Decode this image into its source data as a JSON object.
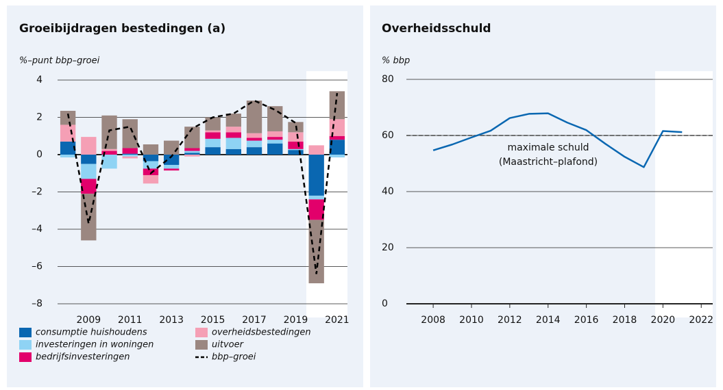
{
  "chart_data": [
    {
      "type": "stacked-bar",
      "title": "Groeibijdragen bestedingen (a)",
      "y_label": "%–punt bbp–groei",
      "categories": [
        null,
        "2009",
        null,
        "2011",
        null,
        "2013",
        null,
        "2015",
        null,
        "2017",
        null,
        "2019",
        null,
        "2021"
      ],
      "ylim": [
        -8,
        4
      ],
      "yticks": [
        {
          "value": -8,
          "label": "–8"
        },
        {
          "value": -6,
          "label": "–6"
        },
        {
          "value": -4,
          "label": "–4"
        },
        {
          "value": -2,
          "label": "–2"
        },
        0,
        2,
        4
      ],
      "grid": true,
      "series": [
        {
          "name": "consumptie huishoudens",
          "color": "#0a67b1",
          "values": [
            0.7,
            -0.5,
            0,
            0.05,
            -0.35,
            -0.55,
            0.1,
            0.4,
            0.3,
            0.4,
            0.6,
            0.25,
            -2.2,
            0.8
          ]
        },
        {
          "name": "investeringen in woningen",
          "color": "#8fd3f4",
          "values": [
            -0.15,
            -0.8,
            -0.75,
            -0.1,
            -0.4,
            -0.2,
            0.1,
            0.45,
            0.6,
            0.35,
            0.2,
            0.05,
            -0.2,
            -0.15
          ]
        },
        {
          "name": "bedrijfsinvesteringen",
          "color": "#e2006b",
          "values": [
            0,
            -0.8,
            0.2,
            0.3,
            -0.35,
            -0.1,
            0.15,
            0.35,
            0.3,
            0.15,
            0.15,
            0.4,
            -1.1,
            0.2
          ]
        },
        {
          "name": "overheidsbestedingen",
          "color": "#f59fb5",
          "values": [
            0.9,
            0.95,
            0.1,
            -0.1,
            -0.45,
            0,
            -0.1,
            0.1,
            0.3,
            0.25,
            0.3,
            0.5,
            0.5,
            0.9
          ]
        },
        {
          "name": "uitvoer",
          "color": "#9b8781",
          "values": [
            0.75,
            -2.5,
            1.8,
            1.55,
            0.55,
            0.75,
            1.15,
            0.7,
            0.7,
            1.75,
            1.35,
            0.55,
            -3.4,
            1.5
          ]
        },
        {
          "name": "bbp–groei",
          "type": "line",
          "style": "dashed",
          "color": "#000000",
          "values": [
            2.2,
            -3.7,
            1.3,
            1.5,
            -1.0,
            -0.1,
            1.4,
            2.0,
            2.2,
            2.9,
            2.4,
            1.7,
            -6.4,
            3.3
          ]
        }
      ]
    },
    {
      "type": "line",
      "title": "Overheidsschuld",
      "y_label": "% bbp",
      "x": [
        2008,
        2009,
        2010,
        2011,
        2012,
        2013,
        2014,
        2015,
        2016,
        2017,
        2018,
        2019,
        2020,
        2021
      ],
      "xlim": [
        2006.6,
        2022.6
      ],
      "xticks": [
        2008,
        2010,
        2012,
        2014,
        2016,
        2018,
        2020,
        2022
      ],
      "ylim": [
        0,
        80
      ],
      "yticks": [
        0,
        20,
        40,
        60,
        80
      ],
      "grid": true,
      "series": [
        {
          "color": "#0a67b1",
          "values": [
            54.7,
            56.8,
            59.3,
            61.7,
            66.2,
            67.7,
            67.9,
            64.6,
            61.9,
            57.0,
            52.4,
            48.7,
            61.6,
            61.2
          ]
        }
      ],
      "reference_line": {
        "value": 60,
        "lines": [
          "maximale schuld",
          "(Maastricht–plafond)"
        ]
      }
    }
  ]
}
